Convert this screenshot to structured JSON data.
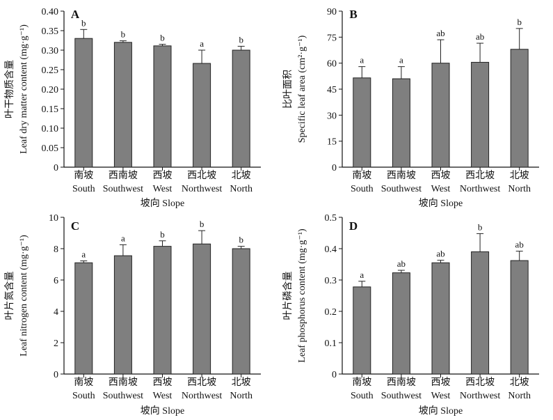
{
  "chart_data": [
    {
      "type": "bar",
      "panel_label": "A",
      "categories": [
        {
          "zh": "南坡",
          "en": "South"
        },
        {
          "zh": "西南坡",
          "en": "Southwest"
        },
        {
          "zh": "西坡",
          "en": "West"
        },
        {
          "zh": "西北坡",
          "en": "Northwest"
        },
        {
          "zh": "北坡",
          "en": "North"
        }
      ],
      "values": [
        0.33,
        0.32,
        0.311,
        0.266,
        0.3
      ],
      "errors": [
        0.023,
        0.004,
        0.004,
        0.034,
        0.01
      ],
      "significance": [
        "b",
        "b",
        "b",
        "a",
        "b"
      ],
      "ylabel_zh": "叶干物质含量",
      "ylabel_en": "Leaf dry matter content (mg·g⁻¹)",
      "xlabel": "坡向 Slope",
      "ylim": [
        0,
        0.4
      ],
      "yticks": [
        "0",
        "0.05",
        "0.10",
        "0.15",
        "0.20",
        "0.25",
        "0.30",
        "0.35",
        "0.40"
      ],
      "bar_color": "#7f7f7f"
    },
    {
      "type": "bar",
      "panel_label": "B",
      "categories": [
        {
          "zh": "南坡",
          "en": "South"
        },
        {
          "zh": "西南坡",
          "en": "Southwest"
        },
        {
          "zh": "西坡",
          "en": "West"
        },
        {
          "zh": "西北坡",
          "en": "Northwest"
        },
        {
          "zh": "北坡",
          "en": "North"
        }
      ],
      "values": [
        51.5,
        51.0,
        60.0,
        60.5,
        68.0
      ],
      "errors": [
        6.5,
        7.0,
        13.5,
        11.0,
        12.0
      ],
      "significance": [
        "a",
        "a",
        "ab",
        "ab",
        "b"
      ],
      "ylabel_zh": "比叶面积",
      "ylabel_en": "Specific leaf area (cm²·g⁻¹)",
      "xlabel": "坡向 Slope",
      "ylim": [
        0,
        90
      ],
      "yticks": [
        "0",
        "15",
        "30",
        "45",
        "60",
        "75",
        "90"
      ],
      "bar_color": "#7f7f7f"
    },
    {
      "type": "bar",
      "panel_label": "C",
      "categories": [
        {
          "zh": "南坡",
          "en": "South"
        },
        {
          "zh": "西南坡",
          "en": "Southwest"
        },
        {
          "zh": "西坡",
          "en": "West"
        },
        {
          "zh": "西北坡",
          "en": "Northwest"
        },
        {
          "zh": "北坡",
          "en": "North"
        }
      ],
      "values": [
        7.1,
        7.55,
        8.15,
        8.3,
        8.0
      ],
      "errors": [
        0.12,
        0.7,
        0.35,
        0.85,
        0.15
      ],
      "significance": [
        "a",
        "a",
        "b",
        "b",
        "b"
      ],
      "ylabel_zh": "叶片氮含量",
      "ylabel_en": "Leaf nitrogen content (mg·g⁻¹)",
      "xlabel": "坡向 Slope",
      "ylim": [
        0,
        10
      ],
      "yticks": [
        "0",
        "2",
        "4",
        "6",
        "8",
        "10"
      ],
      "bar_color": "#7f7f7f"
    },
    {
      "type": "bar",
      "panel_label": "D",
      "categories": [
        {
          "zh": "南坡",
          "en": "South"
        },
        {
          "zh": "西南坡",
          "en": "Southwest"
        },
        {
          "zh": "西坡",
          "en": "West"
        },
        {
          "zh": "西北坡",
          "en": "Northwest"
        },
        {
          "zh": "北坡",
          "en": "North"
        }
      ],
      "values": [
        0.278,
        0.323,
        0.355,
        0.39,
        0.362
      ],
      "errors": [
        0.018,
        0.008,
        0.008,
        0.058,
        0.03
      ],
      "significance": [
        "a",
        "ab",
        "ab",
        "b",
        "ab"
      ],
      "ylabel_zh": "叶片磷含量",
      "ylabel_en": "Leaf phosphorus content (mg·g⁻¹)",
      "xlabel": "坡向 Slope",
      "ylim": [
        0,
        0.5
      ],
      "yticks": [
        "0",
        "0.1",
        "0.2",
        "0.3",
        "0.4",
        "0.5"
      ],
      "bar_color": "#7f7f7f"
    }
  ]
}
